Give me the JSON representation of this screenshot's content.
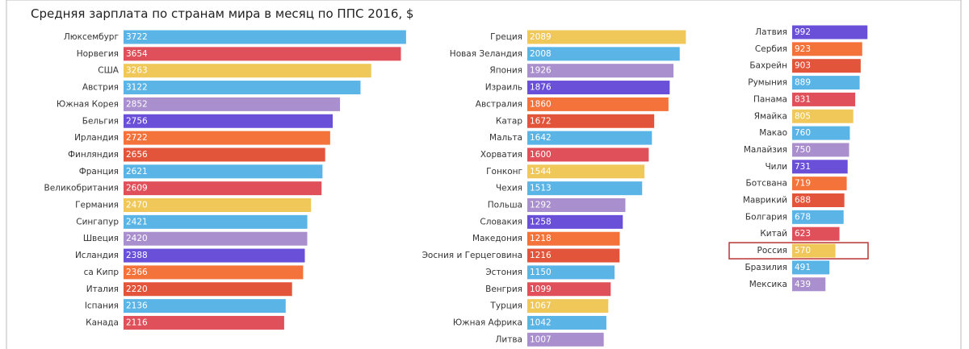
{
  "chart_data": [
    {
      "type": "bar",
      "orientation": "horizontal",
      "title": "Средняя зарплата по странам мира в месяц по ППС 2016, $",
      "categories": [
        "Люксембург",
        "Норвегия",
        "США",
        "Австрия",
        "Южная Корея",
        "Бельгия",
        "Ирландия",
        "Финляндия",
        "Франция",
        "Великобритания",
        "Германия",
        "Сингапур",
        "Швеция",
        "Исландия",
        "са Кипр",
        "Италия",
        "Іспания",
        "Канада"
      ],
      "values": [
        3722,
        3654,
        3263,
        3122,
        2852,
        2756,
        2722,
        2656,
        2621,
        2609,
        2470,
        2421,
        2420,
        2388,
        2366,
        2220,
        2136,
        2116
      ],
      "colors": [
        "#5ab4e5",
        "#e0505a",
        "#f0c85a",
        "#5ab4e5",
        "#a98fce",
        "#6a4fd8",
        "#f4733a",
        "#e2553a",
        "#5ab4e5",
        "#e0505a",
        "#f0c85a",
        "#5ab4e5",
        "#a98fce",
        "#6a4fd8",
        "#f4733a",
        "#e2553a",
        "#5ab4e5",
        "#e0505a"
      ]
    },
    {
      "type": "bar",
      "orientation": "horizontal",
      "categories": [
        "Греция",
        "Новая Зеландия",
        "Япония",
        "Израиль",
        "Австралия",
        "Катар",
        "Мальта",
        "Хорватия",
        "Гонконг",
        "Чехия",
        "Польша",
        "Словакия",
        "Македония",
        "Эосния и Герцеговина",
        "Эстония",
        "Венгрия",
        "Турция",
        "Южная Африка",
        "Литва"
      ],
      "values": [
        2089,
        2008,
        1926,
        1876,
        1860,
        1672,
        1642,
        1600,
        1544,
        1513,
        1292,
        1258,
        1218,
        1216,
        1150,
        1099,
        1067,
        1042,
        1007
      ],
      "colors": [
        "#f0c85a",
        "#5ab4e5",
        "#a98fce",
        "#6a4fd8",
        "#f4733a",
        "#e2553a",
        "#5ab4e5",
        "#e0505a",
        "#f0c85a",
        "#5ab4e5",
        "#a98fce",
        "#6a4fd8",
        "#f4733a",
        "#e2553a",
        "#5ab4e5",
        "#e0505a",
        "#f0c85a",
        "#5ab4e5",
        "#a98fce"
      ]
    },
    {
      "type": "bar",
      "orientation": "horizontal",
      "categories": [
        "Латвия",
        "Сербия",
        "Бахрейн",
        "Румыния",
        "Панама",
        "Ямайка",
        "Макао",
        "Малайзия",
        "Чили",
        "Ботсвана",
        "Маврикий",
        "Болгария",
        "Китай",
        "Россия",
        "Бразилия",
        "Мексика"
      ],
      "values": [
        992,
        923,
        903,
        889,
        831,
        805,
        760,
        750,
        731,
        719,
        688,
        678,
        623,
        570,
        491,
        439
      ],
      "colors": [
        "#6a4fd8",
        "#f4733a",
        "#e2553a",
        "#5ab4e5",
        "#e0505a",
        "#f0c85a",
        "#5ab4e5",
        "#a98fce",
        "#6a4fd8",
        "#f4733a",
        "#e2553a",
        "#5ab4e5",
        "#e0505a",
        "#f0c85a",
        "#5ab4e5",
        "#a98fce"
      ],
      "highlight": 13
    }
  ]
}
